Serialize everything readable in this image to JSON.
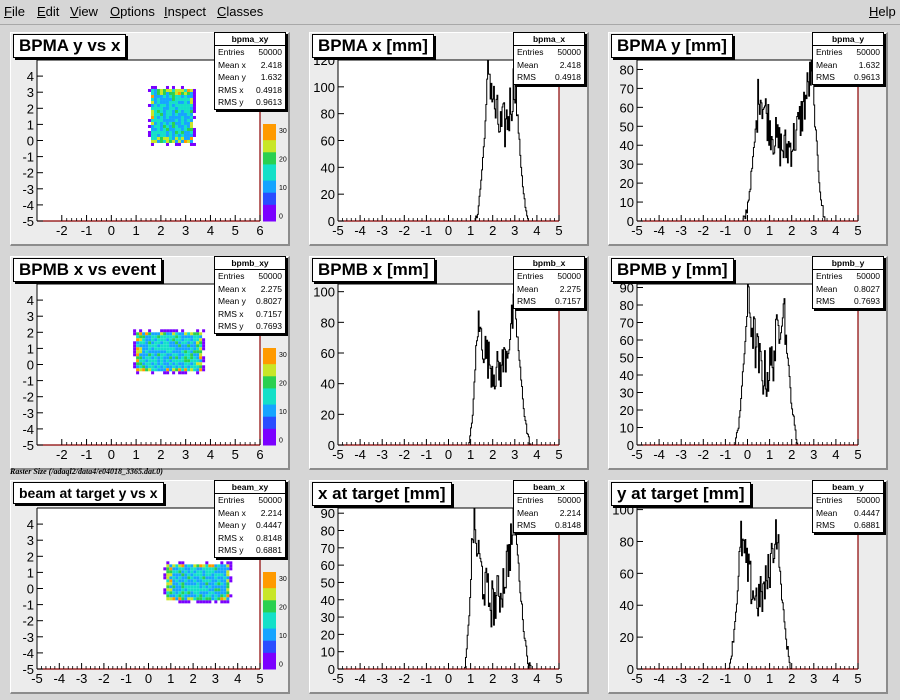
{
  "menu": {
    "items": [
      "File",
      "Edit",
      "View",
      "Options",
      "Inspect",
      "Classes"
    ],
    "help": "Help"
  },
  "raster_label": "Raster Size (/adaql2/data4/e04018_3365.dat.0)",
  "palette": {
    "heat": [
      "#7b00ff",
      "#2a4dff",
      "#16a4ff",
      "#14e0c8",
      "#2ad050",
      "#c8e628",
      "#ff9a00"
    ],
    "frame_axis": "#8b0000"
  },
  "pads": [
    {
      "id": "pad-bpma-xy",
      "kind": "2d",
      "title": "BPMA y vs x",
      "stats": {
        "name": "bpma_xy",
        "rows": [
          [
            "Entries",
            "50000"
          ],
          [
            "Mean x",
            "2.418"
          ],
          [
            "Mean y",
            "1.632"
          ],
          [
            "RMS x",
            "0.4918"
          ],
          [
            "RMS y",
            "0.9613"
          ]
        ]
      },
      "palette_ticks": [
        "30",
        "20",
        "10",
        "0"
      ]
    },
    {
      "id": "pad-bpma-x",
      "kind": "1d",
      "title": "BPMA x [mm]",
      "stats": {
        "name": "bpma_x",
        "rows": [
          [
            "Entries",
            "50000"
          ],
          [
            "Mean",
            "2.418"
          ],
          [
            "RMS",
            "0.4918"
          ]
        ]
      }
    },
    {
      "id": "pad-bpma-y",
      "kind": "1d",
      "title": "BPMA y [mm]",
      "stats": {
        "name": "bpma_y",
        "rows": [
          [
            "Entries",
            "50000"
          ],
          [
            "Mean",
            "1.632"
          ],
          [
            "RMS",
            "0.9613"
          ]
        ]
      }
    },
    {
      "id": "pad-bpmb-xy",
      "kind": "2d",
      "title": "BPMB x vs event",
      "stats": {
        "name": "bpmb_xy",
        "rows": [
          [
            "Entries",
            "50000"
          ],
          [
            "Mean x",
            "2.275"
          ],
          [
            "Mean y",
            "0.8027"
          ],
          [
            "RMS x",
            "0.7157"
          ],
          [
            "RMS y",
            "0.7693"
          ]
        ]
      },
      "palette_ticks": [
        "30",
        "20",
        "10",
        "0"
      ]
    },
    {
      "id": "pad-bpmb-x",
      "kind": "1d",
      "title": "BPMB x [mm]",
      "stats": {
        "name": "bpmb_x",
        "rows": [
          [
            "Entries",
            "50000"
          ],
          [
            "Mean",
            "2.275"
          ],
          [
            "RMS",
            "0.7157"
          ]
        ]
      }
    },
    {
      "id": "pad-bpmb-y",
      "kind": "1d",
      "title": "BPMB y [mm]",
      "stats": {
        "name": "bpmb_y",
        "rows": [
          [
            "Entries",
            "50000"
          ],
          [
            "Mean",
            "0.8027"
          ],
          [
            "RMS",
            "0.7693"
          ]
        ]
      }
    },
    {
      "id": "pad-beam-xy",
      "kind": "2d",
      "title": "beam at target y vs x",
      "stats": {
        "name": "beam_xy",
        "rows": [
          [
            "Entries",
            "50000"
          ],
          [
            "Mean x",
            "2.214"
          ],
          [
            "Mean y",
            "0.4447"
          ],
          [
            "RMS x",
            "0.8148"
          ],
          [
            "RMS y",
            "0.6881"
          ]
        ]
      },
      "palette_ticks": [
        "30",
        "20",
        "10",
        "0"
      ]
    },
    {
      "id": "pad-beam-x",
      "kind": "1d",
      "title": "x at target [mm]",
      "stats": {
        "name": "beam_x",
        "rows": [
          [
            "Entries",
            "50000"
          ],
          [
            "Mean",
            "2.214"
          ],
          [
            "RMS",
            "0.8148"
          ]
        ]
      }
    },
    {
      "id": "pad-beam-y",
      "kind": "1d",
      "title": "y at target [mm]",
      "stats": {
        "name": "beam_y",
        "rows": [
          [
            "Entries",
            "50000"
          ],
          [
            "Mean",
            "0.4447"
          ],
          [
            "RMS",
            "0.6881"
          ]
        ]
      }
    }
  ],
  "chart_data": [
    {
      "type": "heatmap",
      "title": "BPMA y vs x",
      "xlim": [
        -3,
        6
      ],
      "ylim": [
        -5,
        5
      ],
      "xticks": [
        "-2",
        "-1",
        "0",
        "1",
        "2",
        "3",
        "4",
        "5",
        "6"
      ],
      "yticks": [
        "-5",
        "-4",
        "-3",
        "-2",
        "-1",
        "0",
        "1",
        "2",
        "3",
        "4"
      ],
      "spot": {
        "x": [
          1.6,
          3.2
        ],
        "y": [
          0.0,
          3.2
        ]
      }
    },
    {
      "type": "line",
      "title": "BPMA x [mm]",
      "xlim": [
        -5,
        5
      ],
      "ylim": [
        0,
        120
      ],
      "xticks": [
        "-5",
        "-4",
        "-3",
        "-2",
        "-1",
        "0",
        "1",
        "2",
        "3",
        "4",
        "5"
      ],
      "yticks": [
        "0",
        "20",
        "40",
        "60",
        "80",
        "100",
        "120"
      ],
      "profile": {
        "x_min": 1.2,
        "x_max": 3.6,
        "peak_left": {
          "x": 1.8,
          "y": 116
        },
        "peak_right": {
          "x": 3.0,
          "y": 108
        },
        "valley": {
          "x": 2.4,
          "y": 68
        }
      }
    },
    {
      "type": "line",
      "title": "BPMA y [mm]",
      "xlim": [
        -5,
        5
      ],
      "ylim": [
        0,
        85
      ],
      "xticks": [
        "-5",
        "-4",
        "-3",
        "-2",
        "-1",
        "0",
        "1",
        "2",
        "3",
        "4",
        "5"
      ],
      "yticks": [
        "0",
        "10",
        "20",
        "30",
        "40",
        "50",
        "60",
        "70",
        "80"
      ],
      "profile": {
        "x_min": -0.2,
        "x_max": 3.5,
        "peak_left": {
          "x": 0.5,
          "y": 70
        },
        "peak_right": {
          "x": 2.9,
          "y": 80
        },
        "valley": {
          "x": 1.7,
          "y": 38
        }
      }
    },
    {
      "type": "heatmap",
      "title": "BPMB x vs event",
      "xlim": [
        -3,
        6
      ],
      "ylim": [
        -5,
        5
      ],
      "xticks": [
        "-2",
        "-1",
        "0",
        "1",
        "2",
        "3",
        "4",
        "5",
        "6"
      ],
      "yticks": [
        "-5",
        "-4",
        "-3",
        "-2",
        "-1",
        "0",
        "1",
        "2",
        "3",
        "4"
      ],
      "spot": {
        "x": [
          1.0,
          3.6
        ],
        "y": [
          -0.3,
          2.0
        ]
      }
    },
    {
      "type": "line",
      "title": "BPMB x [mm]",
      "xlim": [
        -5,
        5
      ],
      "ylim": [
        0,
        105
      ],
      "xticks": [
        "-5",
        "-4",
        "-3",
        "-2",
        "-1",
        "0",
        "1",
        "2",
        "3",
        "4",
        "5"
      ],
      "yticks": [
        "0",
        "20",
        "40",
        "60",
        "80",
        "100"
      ],
      "profile": {
        "x_min": 0.9,
        "x_max": 3.7,
        "peak_left": {
          "x": 1.3,
          "y": 80
        },
        "peak_right": {
          "x": 3.0,
          "y": 92
        },
        "valley": {
          "x": 2.2,
          "y": 48
        }
      }
    },
    {
      "type": "line",
      "title": "BPMB y [mm]",
      "xlim": [
        -5,
        5
      ],
      "ylim": [
        0,
        92
      ],
      "xticks": [
        "-5",
        "-4",
        "-3",
        "-2",
        "-1",
        "0",
        "1",
        "2",
        "3",
        "4",
        "5"
      ],
      "yticks": [
        "0",
        "10",
        "20",
        "30",
        "40",
        "50",
        "60",
        "70",
        "80",
        "90"
      ],
      "profile": {
        "x_min": -0.6,
        "x_max": 2.3,
        "peak_left": {
          "x": 0.0,
          "y": 85
        },
        "peak_right": {
          "x": 1.6,
          "y": 86
        },
        "valley": {
          "x": 0.8,
          "y": 40
        }
      }
    },
    {
      "type": "heatmap",
      "title": "beam at target y vs x",
      "xlim": [
        -5,
        5
      ],
      "ylim": [
        -5,
        5
      ],
      "xticks": [
        "-5",
        "-4",
        "-3",
        "-2",
        "-1",
        "0",
        "1",
        "2",
        "3",
        "4",
        "5"
      ],
      "yticks": [
        "-5",
        "-4",
        "-3",
        "-2",
        "-1",
        "0",
        "1",
        "2",
        "3",
        "4"
      ],
      "spot": {
        "x": [
          0.8,
          3.6
        ],
        "y": [
          -0.6,
          1.5
        ]
      }
    },
    {
      "type": "line",
      "title": "x at target [mm]",
      "xlim": [
        -5,
        5
      ],
      "ylim": [
        0,
        93
      ],
      "xticks": [
        "-5",
        "-4",
        "-3",
        "-2",
        "-1",
        "0",
        "1",
        "2",
        "3",
        "4",
        "5"
      ],
      "yticks": [
        "0",
        "10",
        "20",
        "30",
        "40",
        "50",
        "60",
        "70",
        "80",
        "90"
      ],
      "profile": {
        "x_min": 0.7,
        "x_max": 3.7,
        "peak_left": {
          "x": 1.1,
          "y": 84
        },
        "peak_right": {
          "x": 3.0,
          "y": 88
        },
        "valley": {
          "x": 2.0,
          "y": 38
        }
      }
    },
    {
      "type": "line",
      "title": "y at target [mm]",
      "xlim": [
        -5,
        5
      ],
      "ylim": [
        0,
        101
      ],
      "xticks": [
        "-5",
        "-4",
        "-3",
        "-2",
        "-1",
        "0",
        "1",
        "2",
        "3",
        "4",
        "5"
      ],
      "yticks": [
        "0",
        "20",
        "40",
        "60",
        "80",
        "100"
      ],
      "profile": {
        "x_min": -0.9,
        "x_max": 2.0,
        "peak_left": {
          "x": -0.3,
          "y": 82
        },
        "peak_right": {
          "x": 1.3,
          "y": 90
        },
        "valley": {
          "x": 0.5,
          "y": 44
        }
      }
    }
  ]
}
